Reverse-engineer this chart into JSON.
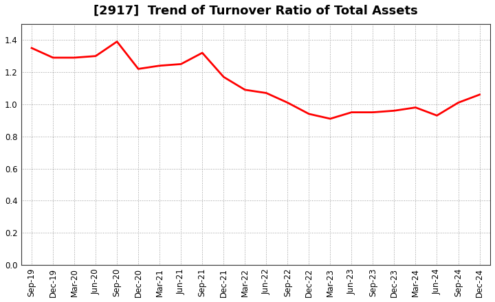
{
  "title": "[2917]  Trend of Turnover Ratio of Total Assets",
  "x_labels": [
    "Sep-19",
    "Dec-19",
    "Mar-20",
    "Jun-20",
    "Sep-20",
    "Dec-20",
    "Mar-21",
    "Jun-21",
    "Sep-21",
    "Dec-21",
    "Mar-22",
    "Jun-22",
    "Sep-22",
    "Dec-22",
    "Mar-23",
    "Jun-23",
    "Sep-23",
    "Dec-23",
    "Mar-24",
    "Jun-24",
    "Sep-24",
    "Dec-24"
  ],
  "y_values": [
    1.35,
    1.29,
    1.29,
    1.3,
    1.39,
    1.22,
    1.24,
    1.25,
    1.32,
    1.17,
    1.09,
    1.07,
    1.01,
    0.94,
    0.91,
    0.95,
    0.95,
    0.96,
    0.98,
    0.93,
    1.01,
    1.06
  ],
  "line_color": "#FF0000",
  "line_width": 2.0,
  "ylim": [
    0.0,
    1.5
  ],
  "yticks": [
    0.0,
    0.2,
    0.4,
    0.6,
    0.8,
    1.0,
    1.2,
    1.4
  ],
  "background_color": "#ffffff",
  "grid_color": "#999999",
  "title_fontsize": 13,
  "tick_fontsize": 8.5
}
